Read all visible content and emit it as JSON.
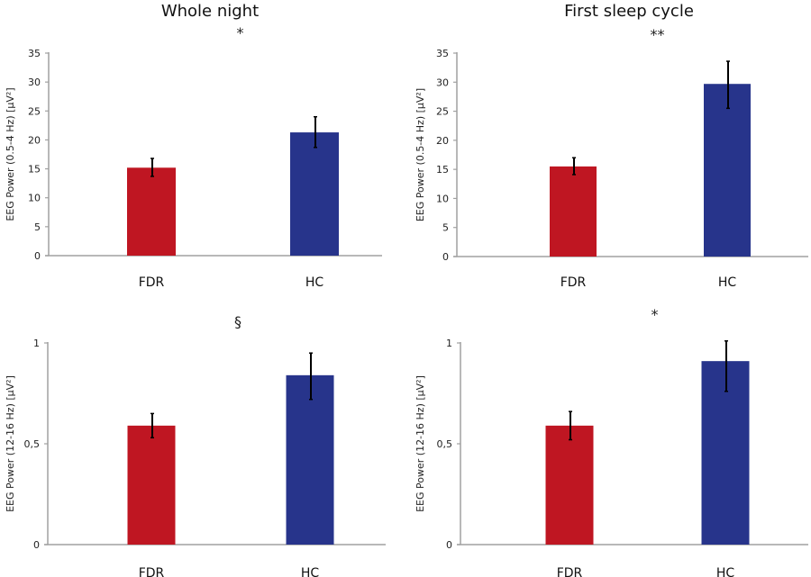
{
  "column_titles": [
    "Whole night",
    "First sleep cycle"
  ],
  "colors": {
    "FDR": "#bf1622",
    "HC": "#27348b",
    "axis": "#a0a0a0",
    "error": "#000000"
  },
  "chart_data": [
    {
      "type": "bar",
      "title": "Whole night",
      "significance": "*",
      "categories": [
        "FDR",
        "HC"
      ],
      "values": [
        15.2,
        21.3
      ],
      "errors": [
        [
          13.7,
          16.8
        ],
        [
          18.7,
          24.0
        ]
      ],
      "ylabel": "EEG Power (0.5-4 Hz) [µV²]",
      "ylim": [
        0,
        35
      ],
      "yticks": [
        0,
        5,
        10,
        15,
        20,
        25,
        30,
        35
      ],
      "ytick_labels": [
        "0",
        "5",
        "10",
        "15",
        "20",
        "25",
        "30",
        "35"
      ],
      "grid": false
    },
    {
      "type": "bar",
      "title": "First sleep cycle",
      "significance": "**",
      "categories": [
        "FDR",
        "HC"
      ],
      "values": [
        15.5,
        29.7
      ],
      "errors": [
        [
          14.1,
          17.0
        ],
        [
          25.5,
          33.6
        ]
      ],
      "ylabel": "EEG Power (0.5-4 Hz) [µV²]",
      "ylim": [
        0,
        35
      ],
      "yticks": [
        0,
        5,
        10,
        15,
        20,
        25,
        30,
        35
      ],
      "ytick_labels": [
        "0",
        "5",
        "10",
        "15",
        "20",
        "25",
        "30",
        "35"
      ],
      "grid": false
    },
    {
      "type": "bar",
      "title": "",
      "significance": "§",
      "categories": [
        "FDR",
        "HC"
      ],
      "values": [
        0.59,
        0.84
      ],
      "errors": [
        [
          0.53,
          0.65
        ],
        [
          0.72,
          0.95
        ]
      ],
      "ylabel": "EEG Power (12-16 Hz) [µV²]",
      "ylim": [
        0,
        1
      ],
      "yticks": [
        0,
        0.5,
        1
      ],
      "ytick_labels": [
        "0",
        "0,5",
        "1"
      ],
      "grid": false
    },
    {
      "type": "bar",
      "title": "",
      "significance": "*",
      "categories": [
        "FDR",
        "HC"
      ],
      "values": [
        0.59,
        0.91
      ],
      "errors": [
        [
          0.52,
          0.66
        ],
        [
          0.76,
          1.01
        ]
      ],
      "ylabel": "EEG Power (12-16 Hz) [µV²]",
      "ylim": [
        0,
        1
      ],
      "yticks": [
        0,
        0.5,
        1
      ],
      "ytick_labels": [
        "0",
        "0,5",
        "1"
      ],
      "grid": false
    }
  ]
}
